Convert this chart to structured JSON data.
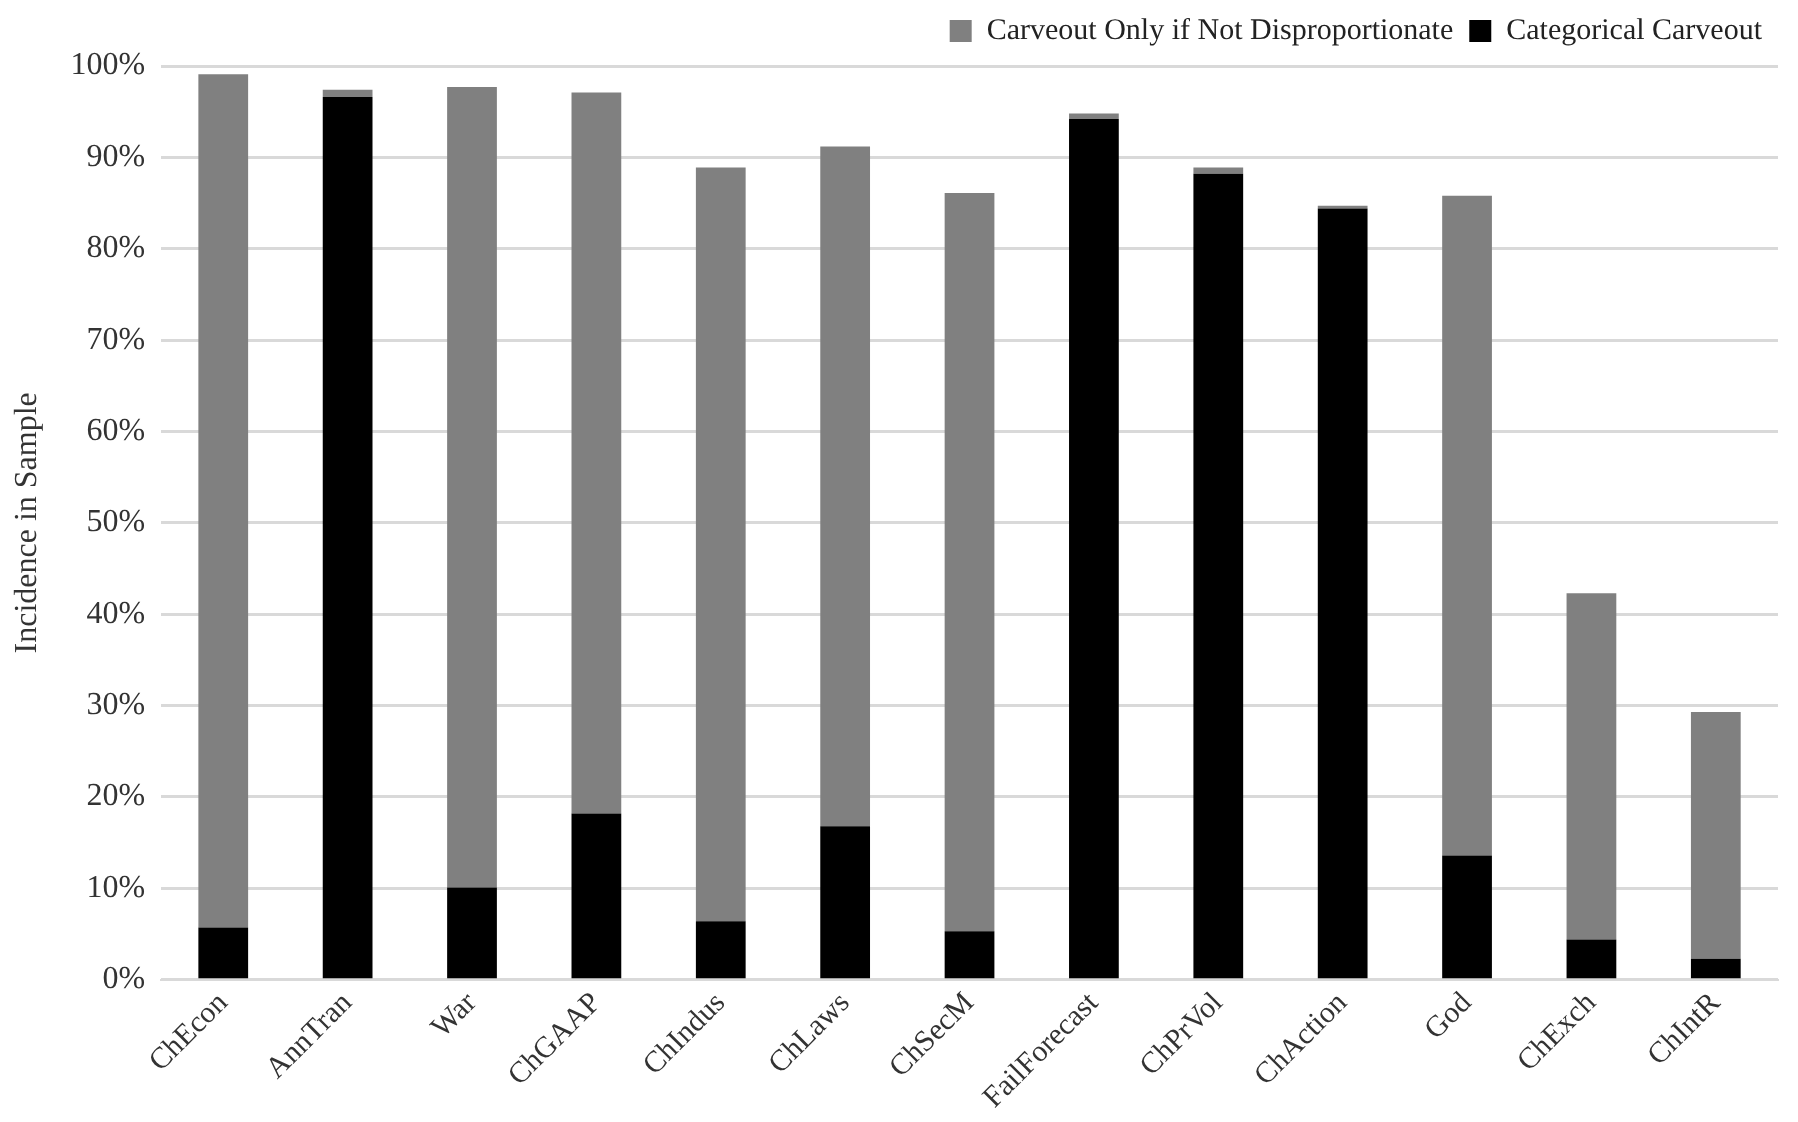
{
  "chart_data": {
    "type": "bar",
    "stacked": true,
    "ylabel": "Incidence in Sample",
    "categories": [
      "ChEcon",
      "AnnTran",
      "War",
      "ChGAAP",
      "ChIndus",
      "ChLaws",
      "ChSecM",
      "FailForecast",
      "ChPrVol",
      "ChAction",
      "God",
      "ChExch",
      "ChIntR"
    ],
    "series": [
      {
        "name": "Categorical Carveout",
        "color": "#000000",
        "values": [
          5.7,
          96.6,
          10.1,
          18.2,
          6.4,
          16.8,
          5.3,
          94.2,
          88.2,
          84.4,
          13.6,
          4.4,
          2.3
        ]
      },
      {
        "name": "Carveout Only if Not Disproportionate",
        "color": "#808080",
        "values": [
          93.4,
          0.8,
          87.6,
          78.9,
          82.5,
          74.4,
          80.8,
          0.6,
          0.7,
          0.3,
          72.2,
          37.9,
          27.0
        ]
      }
    ],
    "ylim": [
      0,
      100
    ],
    "yticks": [
      {
        "value": 0,
        "label": "0%"
      },
      {
        "value": 10,
        "label": "10%"
      },
      {
        "value": 20,
        "label": "20%"
      },
      {
        "value": 30,
        "label": "30%"
      },
      {
        "value": 40,
        "label": "40%"
      },
      {
        "value": 50,
        "label": "50%"
      },
      {
        "value": 60,
        "label": "60%"
      },
      {
        "value": 70,
        "label": "70%"
      },
      {
        "value": 80,
        "label": "80%"
      },
      {
        "value": 90,
        "label": "90%"
      },
      {
        "value": 100,
        "label": "100%"
      }
    ],
    "grid": "y",
    "legend": "top right"
  }
}
